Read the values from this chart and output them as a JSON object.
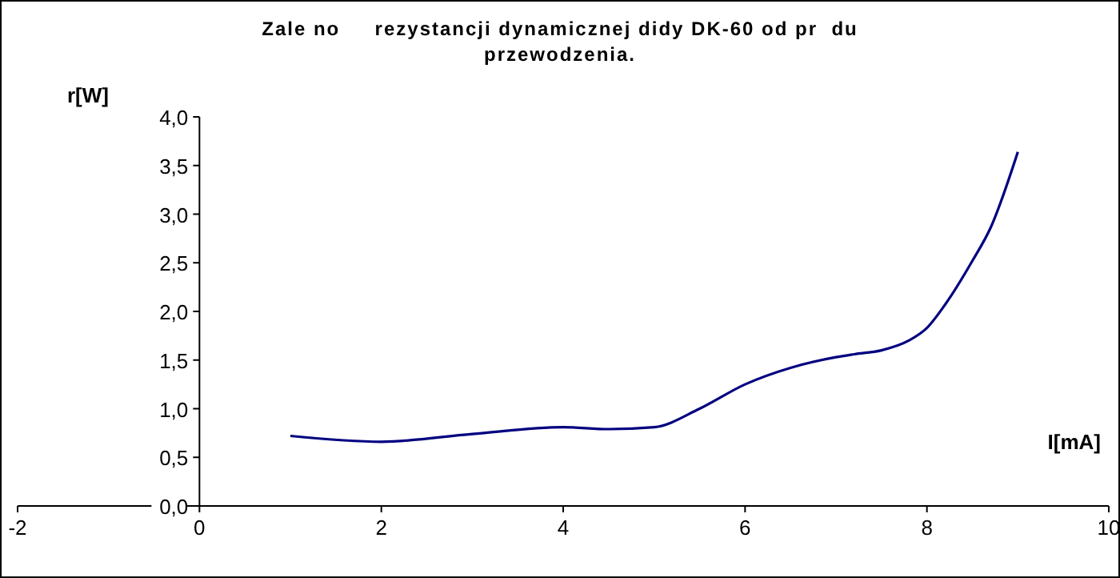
{
  "chart_data": {
    "type": "line",
    "title": "Zale no     rezystancji dynamicznej didy DK-60 od pr  du\nprzewodzenia.",
    "xlabel": "I[mA]",
    "ylabel": "r[W]",
    "x": [
      1,
      2,
      3,
      4,
      4.5,
      5,
      5.5,
      6,
      6.5,
      7,
      7.2,
      7.5,
      7.8,
      8,
      8.2,
      8.5,
      8.7,
      9
    ],
    "series": [
      {
        "color": "#000080",
        "values": [
          0.72,
          0.66,
          0.74,
          0.81,
          0.79,
          0.81,
          1.0,
          1.25,
          1.42,
          1.53,
          1.56,
          1.6,
          1.7,
          1.83,
          2.07,
          2.52,
          2.86,
          3.64
        ]
      }
    ],
    "xlim": [
      -2,
      10
    ],
    "xticks": [
      -2,
      0,
      2,
      4,
      6,
      8,
      10
    ],
    "ylim": [
      0,
      4
    ],
    "yticks": [
      {
        "value": 0,
        "label": "0,0"
      },
      {
        "value": 0.5,
        "label": "0,5"
      },
      {
        "value": 1,
        "label": "1,0"
      },
      {
        "value": 1.5,
        "label": "1,5"
      },
      {
        "value": 2,
        "label": "2,0"
      },
      {
        "value": 2.5,
        "label": "2,5"
      },
      {
        "value": 3,
        "label": "3,0"
      },
      {
        "value": 3.5,
        "label": "3,5"
      },
      {
        "value": 4,
        "label": "4,0"
      }
    ],
    "grid": false,
    "marker": "none",
    "line_style": "solid"
  }
}
